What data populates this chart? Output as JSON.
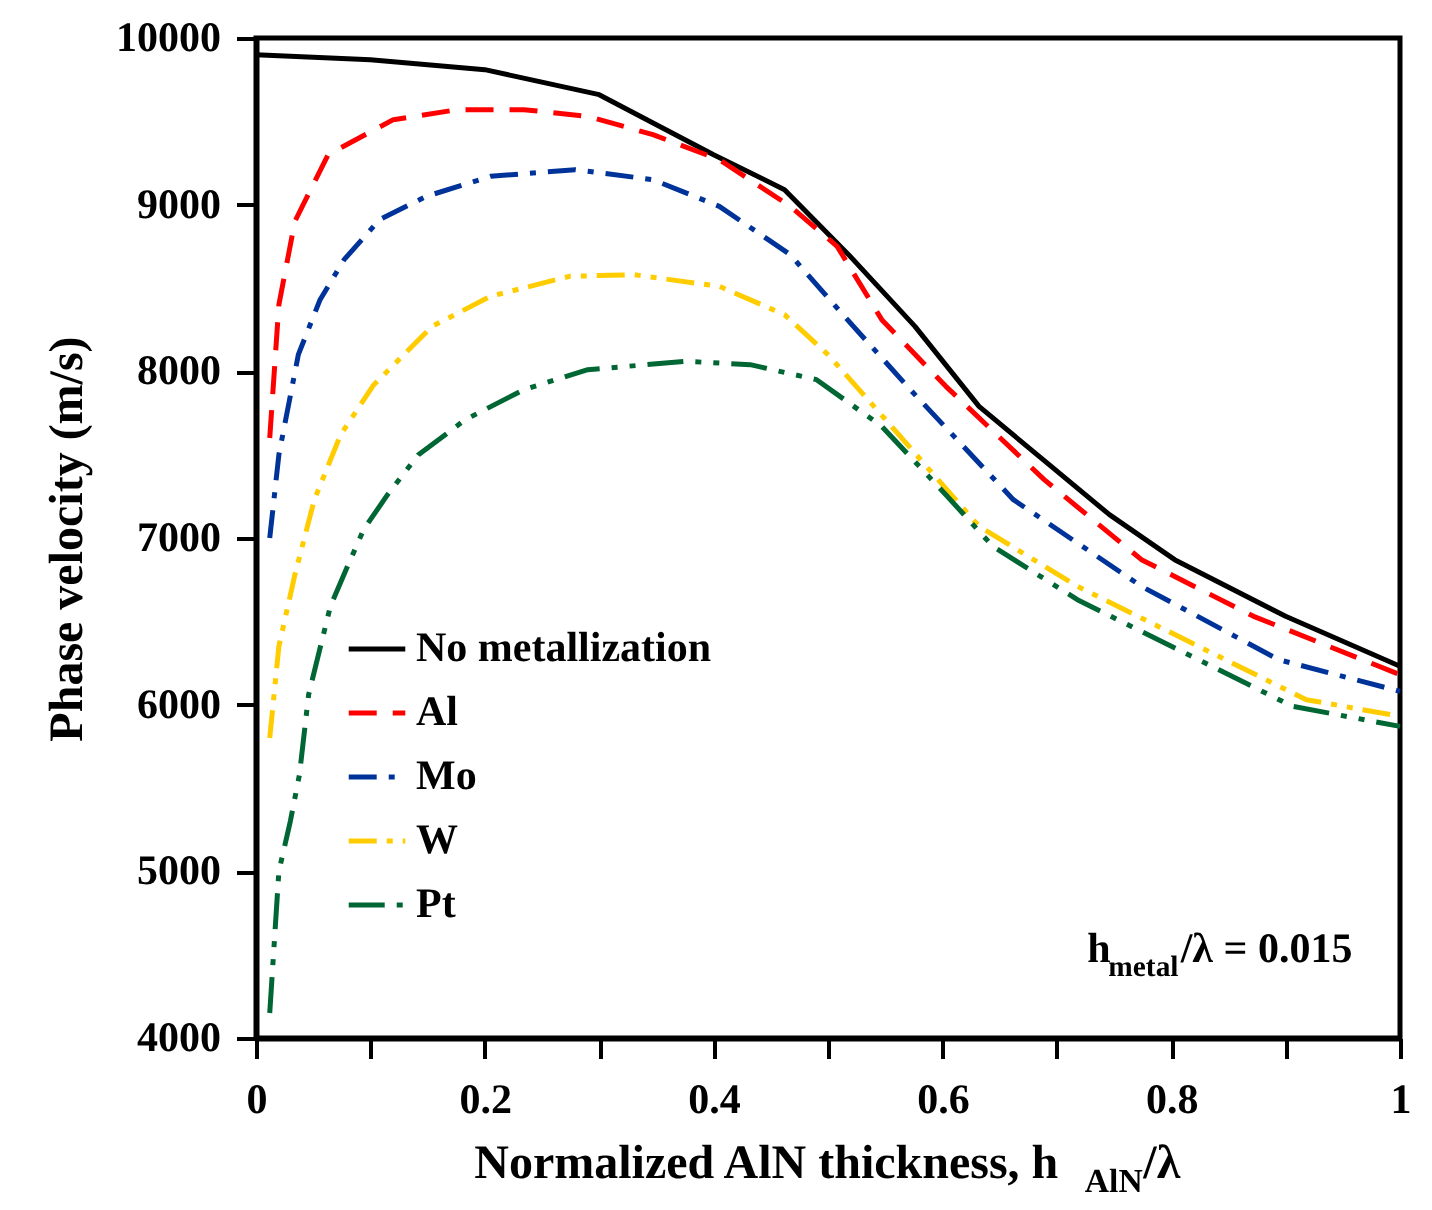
{
  "chart_data": {
    "type": "line",
    "xlabel": "Normalized AlN thickness, h$_{AlN}$/λ",
    "ylabel": "Phase velocity (m/s)",
    "annotations": [
      "h$_{metal}$/λ = 0.015"
    ],
    "xlim": [
      0,
      1
    ],
    "ylim": [
      4000,
      10000
    ],
    "xticks": [
      0,
      {
        "value": 0.1,
        "label": null
      },
      0.2,
      {
        "value": 0.3,
        "label": null
      },
      0.4,
      {
        "value": 0.5,
        "label": null
      },
      0.6,
      {
        "value": 0.7,
        "label": null
      },
      0.8,
      {
        "value": 0.9,
        "label": null
      },
      1
    ],
    "yticks": [
      4000,
      5000,
      6000,
      7000,
      8000,
      9000,
      10000
    ],
    "grid": false,
    "legend": "bottom left",
    "marker": "none",
    "series": [
      {
        "name": "No metallization",
        "color": "#000000",
        "line_style": "solid",
        "x": [
          0,
          0.1,
          0.2,
          0.3,
          0.4,
          0.462,
          0.518,
          0.576,
          0.632,
          0.688,
          0.746,
          0.803,
          0.9,
          1.0
        ],
        "values": [
          9900,
          9870,
          9810,
          9660,
          9300,
          9090,
          8700,
          8270,
          7790,
          7470,
          7140,
          6870,
          6530,
          6230
        ]
      },
      {
        "name": "Al",
        "color": "#ff0000",
        "line_style": "dashed",
        "x": [
          0.012,
          0.02,
          0.034,
          0.063,
          0.12,
          0.176,
          0.234,
          0.29,
          0.347,
          0.405,
          0.467,
          0.508,
          0.547,
          0.603,
          0.689,
          0.774,
          0.872,
          1.0
        ],
        "values": [
          7600,
          8400,
          8900,
          9300,
          9510,
          9570,
          9570,
          9530,
          9420,
          9270,
          8990,
          8750,
          8310,
          7910,
          7350,
          6870,
          6530,
          6180
        ]
      },
      {
        "name": "Mo",
        "color": "#003399",
        "line_style": "dashdot",
        "x": [
          0.012,
          0.02,
          0.037,
          0.056,
          0.077,
          0.108,
          0.149,
          0.205,
          0.279,
          0.347,
          0.405,
          0.467,
          0.513,
          0.576,
          0.662,
          0.774,
          0.894,
          1.0
        ],
        "values": [
          7000,
          7500,
          8100,
          8430,
          8670,
          8910,
          9050,
          9170,
          9210,
          9150,
          8990,
          8700,
          8340,
          7860,
          7230,
          6710,
          6270,
          6080
        ]
      },
      {
        "name": "W",
        "color": "#ffcc00",
        "line_style": "dashdotdot",
        "x": [
          0.012,
          0.02,
          0.034,
          0.051,
          0.074,
          0.103,
          0.154,
          0.205,
          0.274,
          0.33,
          0.405,
          0.462,
          0.5,
          0.535,
          0.632,
          0.718,
          0.918,
          1.0
        ],
        "values": [
          5800,
          6350,
          6780,
          7230,
          7620,
          7920,
          8270,
          8450,
          8570,
          8580,
          8510,
          8340,
          8100,
          7830,
          7070,
          6710,
          6030,
          5930
        ]
      },
      {
        "name": "Pt",
        "color": "#006633",
        "line_style": "longdashdotdot",
        "x": [
          0.012,
          0.02,
          0.03,
          0.038,
          0.046,
          0.065,
          0.08,
          0.094,
          0.115,
          0.142,
          0.183,
          0.234,
          0.29,
          0.376,
          0.432,
          0.49,
          0.547,
          0.603,
          0.644,
          0.718,
          0.906,
          1.0
        ],
        "values": [
          4150,
          5000,
          5300,
          5580,
          6060,
          6590,
          6830,
          7050,
          7260,
          7500,
          7710,
          7890,
          8010,
          8060,
          8040,
          7950,
          7670,
          7260,
          6950,
          6630,
          5990,
          5870
        ]
      }
    ]
  }
}
